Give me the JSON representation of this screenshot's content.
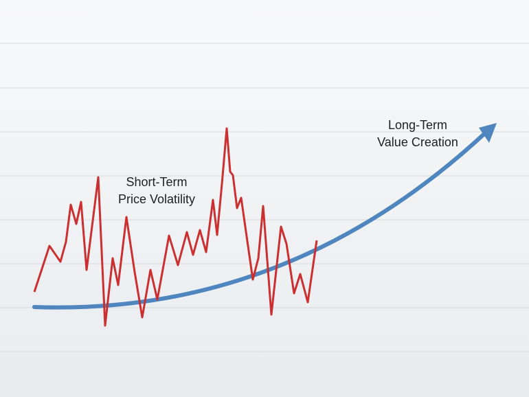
{
  "short_term": {
    "line1": "Short-Term",
    "line2": "Price Volatility"
  },
  "long_term": {
    "line1": "Long-Term",
    "line2": "Value Creation"
  }
}
